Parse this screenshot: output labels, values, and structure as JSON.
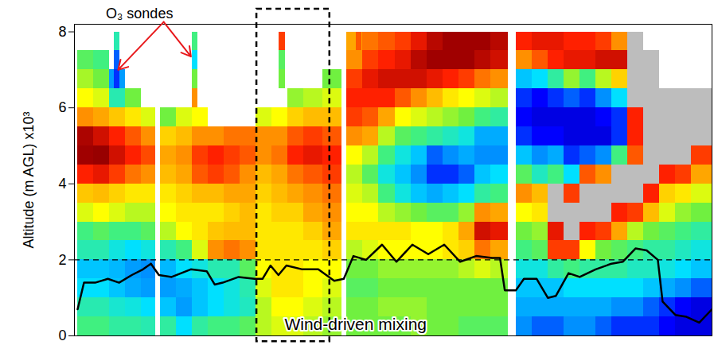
{
  "chart_data": {
    "type": "heatmap",
    "y_label": "Altitude (m AGL) x10³",
    "xlim": [
      0,
      40
    ],
    "ylim": [
      0,
      8.2
    ],
    "yticks": [
      0,
      2,
      4,
      6,
      8
    ],
    "tick_labels": "y",
    "zlim": [
      30,
      100
    ],
    "y_edges": [
      0,
      0.5,
      1,
      1.5,
      2,
      2.5,
      3,
      3.5,
      4,
      4.5,
      5,
      5.5,
      6,
      6.5,
      7,
      7.5,
      8
    ],
    "columns": [
      {
        "x0": 0.2,
        "x1": 1.2,
        "values": [
          58,
          55,
          50,
          48,
          55,
          58,
          68,
          75,
          88,
          96,
          95,
          80,
          70,
          65,
          60,
          null
        ]
      },
      {
        "x0": 1.2,
        "x1": 2.2,
        "values": [
          58,
          55,
          50,
          48,
          55,
          60,
          70,
          76,
          90,
          97,
          92,
          78,
          68,
          62,
          58,
          null
        ]
      },
      {
        "x0": 2.2,
        "x1": 3.2,
        "values": [
          56,
          53,
          48,
          47,
          52,
          58,
          68,
          74,
          86,
          92,
          88,
          75,
          55,
          45,
          null,
          null
        ]
      },
      {
        "x0": 3.2,
        "x1": 4.2,
        "values": [
          56,
          52,
          46,
          45,
          50,
          58,
          66,
          72,
          82,
          88,
          84,
          72,
          62,
          null,
          null,
          null
        ]
      },
      {
        "x0": 4.2,
        "x1": 5.07,
        "values": [
          55,
          50,
          45,
          44,
          52,
          60,
          66,
          72,
          80,
          85,
          80,
          68,
          null,
          null,
          null,
          null
        ]
      },
      {
        "x0": 5.37,
        "x1": 6.4,
        "values": [
          56,
          48,
          45,
          47,
          55,
          66,
          70,
          72,
          76,
          78,
          74,
          62,
          null,
          null,
          null,
          null
        ]
      },
      {
        "x0": 6.4,
        "x1": 7.4,
        "values": [
          50,
          45,
          46,
          50,
          58,
          70,
          72,
          74,
          78,
          80,
          76,
          68,
          null,
          null,
          null,
          null
        ]
      },
      {
        "x0": 7.4,
        "x1": 8.4,
        "values": [
          56,
          48,
          48,
          52,
          68,
          72,
          72,
          76,
          84,
          86,
          80,
          70,
          null,
          null,
          null,
          null
        ]
      },
      {
        "x0": 8.4,
        "x1": 9.4,
        "values": [
          58,
          50,
          50,
          55,
          80,
          75,
          72,
          76,
          86,
          88,
          80,
          null,
          null,
          null,
          null,
          null
        ]
      },
      {
        "x0": 9.4,
        "x1": 10.4,
        "values": [
          58,
          52,
          52,
          55,
          82,
          76,
          74,
          78,
          84,
          86,
          82,
          null,
          null,
          null,
          null,
          null
        ]
      },
      {
        "x0": 10.4,
        "x1": 11.4,
        "values": [
          60,
          54,
          55,
          60,
          80,
          76,
          76,
          78,
          80,
          84,
          82,
          null,
          null,
          null,
          null,
          null
        ]
      },
      {
        "x0": 11.4,
        "x1": 12.4,
        "values": [
          66,
          66,
          68,
          70,
          72,
          72,
          72,
          74,
          76,
          80,
          80,
          68,
          null,
          null,
          null,
          null
        ]
      },
      {
        "x0": 12.4,
        "x1": 13.4,
        "values": [
          68,
          70,
          72,
          72,
          72,
          72,
          74,
          76,
          78,
          82,
          80,
          70,
          null,
          null,
          null,
          null
        ]
      },
      {
        "x0": 13.4,
        "x1": 14.4,
        "values": [
          68,
          70,
          72,
          72,
          72,
          72,
          74,
          78,
          82,
          88,
          84,
          74,
          64,
          null,
          null,
          null
        ]
      },
      {
        "x0": 14.4,
        "x1": 15.6,
        "values": [
          66,
          68,
          70,
          70,
          72,
          74,
          78,
          80,
          84,
          90,
          86,
          76,
          66,
          null,
          null,
          null
        ]
      },
      {
        "x0": 15.6,
        "x1": 16.77,
        "values": [
          64,
          66,
          68,
          70,
          74,
          78,
          80,
          82,
          86,
          88,
          84,
          76,
          68,
          62,
          null,
          null
        ]
      },
      {
        "x0": 17.07,
        "x1": 18.1,
        "values": [
          62,
          62,
          60,
          62,
          66,
          72,
          70,
          68,
          66,
          70,
          80,
          86,
          88,
          86,
          80,
          78
        ]
      },
      {
        "x0": 18.1,
        "x1": 19.1,
        "values": [
          62,
          62,
          60,
          62,
          68,
          72,
          70,
          66,
          60,
          66,
          78,
          84,
          88,
          90,
          86,
          82
        ]
      },
      {
        "x0": 19.1,
        "x1": 20.1,
        "values": [
          62,
          64,
          62,
          64,
          70,
          72,
          66,
          58,
          52,
          58,
          66,
          78,
          88,
          92,
          88,
          84
        ]
      },
      {
        "x0": 20.1,
        "x1": 21.1,
        "values": [
          62,
          64,
          62,
          64,
          70,
          72,
          64,
          52,
          48,
          52,
          60,
          70,
          84,
          92,
          90,
          86
        ]
      },
      {
        "x0": 21.1,
        "x1": 22.1,
        "values": [
          64,
          64,
          62,
          64,
          70,
          70,
          62,
          48,
          44,
          48,
          58,
          68,
          80,
          92,
          94,
          90
        ]
      },
      {
        "x0": 22.1,
        "x1": 23.1,
        "values": [
          62,
          62,
          62,
          64,
          70,
          70,
          60,
          46,
          40,
          42,
          56,
          66,
          76,
          90,
          96,
          94
        ]
      },
      {
        "x0": 23.1,
        "x1": 24.1,
        "values": [
          62,
          62,
          62,
          64,
          72,
          72,
          60,
          48,
          40,
          44,
          54,
          64,
          72,
          88,
          96,
          96
        ]
      },
      {
        "x0": 24.1,
        "x1": 25.1,
        "values": [
          60,
          62,
          62,
          66,
          74,
          78,
          64,
          50,
          42,
          46,
          52,
          62,
          70,
          86,
          96,
          96
        ]
      },
      {
        "x0": 25.1,
        "x1": 26.1,
        "values": [
          60,
          62,
          62,
          68,
          82,
          92,
          80,
          56,
          48,
          44,
          46,
          58,
          68,
          82,
          94,
          96
        ]
      },
      {
        "x0": 26.1,
        "x1": 27.2,
        "values": [
          60,
          62,
          62,
          66,
          78,
          90,
          78,
          58,
          50,
          44,
          46,
          56,
          66,
          80,
          92,
          94
        ]
      },
      {
        "x0": 27.7,
        "x1": 28.7,
        "values": [
          44,
          46,
          48,
          52,
          58,
          62,
          70,
          80,
          60,
          48,
          40,
          38,
          40,
          48,
          80,
          88
        ]
      },
      {
        "x0": 28.7,
        "x1": 29.7,
        "values": [
          42,
          46,
          48,
          52,
          60,
          64,
          72,
          76,
          54,
          44,
          38,
          36,
          38,
          50,
          84,
          90
        ]
      },
      {
        "x0": 29.7,
        "x1": 30.7,
        "values": [
          42,
          46,
          48,
          56,
          86,
          90,
          null,
          null,
          58,
          46,
          38,
          36,
          40,
          56,
          88,
          90
        ],
        "masked": [
          6,
          7
        ]
      },
      {
        "x0": 30.7,
        "x1": 31.7,
        "values": [
          44,
          46,
          50,
          58,
          86,
          null,
          null,
          86,
          50,
          40,
          36,
          36,
          42,
          64,
          90,
          88
        ],
        "masked": [
          5,
          6
        ]
      },
      {
        "x0": 31.7,
        "x1": 32.7,
        "values": [
          44,
          46,
          50,
          56,
          70,
          88,
          null,
          null,
          84,
          42,
          36,
          36,
          40,
          58,
          90,
          88
        ],
        "masked": [
          6,
          7
        ]
      },
      {
        "x0": 32.7,
        "x1": 33.7,
        "values": [
          42,
          46,
          50,
          56,
          62,
          86,
          null,
          null,
          80,
          44,
          36,
          38,
          44,
          66,
          92,
          86
        ],
        "masked": [
          6,
          7
        ]
      },
      {
        "x0": 33.7,
        "x1": 34.7,
        "values": [
          40,
          44,
          50,
          56,
          60,
          78,
          88,
          null,
          null,
          58,
          40,
          40,
          50,
          74,
          92,
          80
        ],
        "masked": [
          7,
          8
        ]
      },
      {
        "x0": 34.7,
        "x1": 35.7,
        "values": [
          40,
          44,
          50,
          54,
          58,
          66,
          86,
          null,
          null,
          84,
          88,
          88,
          null,
          null,
          null,
          null
        ],
        "masked": [
          7,
          8,
          12,
          13,
          14,
          15
        ]
      },
      {
        "x0": 35.7,
        "x1": 36.7,
        "values": [
          40,
          42,
          48,
          54,
          56,
          62,
          76,
          88,
          null,
          null,
          null,
          null,
          null,
          null,
          null,
          null
        ],
        "masked": [
          8,
          9,
          10,
          11,
          12,
          13,
          14
        ]
      },
      {
        "x0": 36.7,
        "x1": 37.7,
        "values": [
          38,
          40,
          46,
          52,
          56,
          60,
          68,
          74,
          88,
          null,
          null,
          null,
          null,
          null,
          null,
          null
        ],
        "masked": [
          9,
          10,
          11,
          12
        ]
      },
      {
        "x0": 37.7,
        "x1": 38.7,
        "values": [
          36,
          38,
          44,
          50,
          54,
          58,
          64,
          72,
          86,
          null,
          null,
          null,
          null,
          null,
          null,
          null
        ],
        "masked": [
          9,
          10,
          11,
          12
        ]
      },
      {
        "x0": 38.7,
        "x1": 40,
        "values": [
          36,
          36,
          42,
          48,
          52,
          56,
          62,
          68,
          78,
          86,
          null,
          null,
          null,
          null,
          null,
          null
        ],
        "masked": [
          10,
          11,
          12
        ]
      }
    ],
    "sondes": [
      {
        "x": 2.69,
        "values": [
          null,
          null,
          null,
          null,
          null,
          null,
          null,
          null,
          null,
          null,
          null,
          null,
          null,
          40,
          42,
          55
        ]
      },
      {
        "x": 7.56,
        "values": [
          null,
          null,
          null,
          null,
          null,
          null,
          null,
          null,
          null,
          null,
          null,
          null,
          80,
          62,
          50,
          58
        ]
      },
      {
        "x": 13.03,
        "values": [
          null,
          null,
          null,
          null,
          null,
          null,
          null,
          null,
          null,
          null,
          null,
          null,
          null,
          62,
          60,
          86
        ]
      },
      {
        "x": 17.86,
        "values": [
          null,
          null,
          null,
          null,
          null,
          null,
          null,
          null,
          null,
          null,
          null,
          null,
          null,
          null,
          null,
          84
        ]
      }
    ],
    "line": {
      "color": "#000000",
      "x": [
        0.2,
        0.6,
        1.3,
        2.1,
        2.8,
        3.6,
        4.3,
        4.8,
        5.3,
        6.1,
        7.3,
        8.3,
        8.8,
        9.3,
        10.3,
        11.3,
        11.8,
        12.3,
        12.8,
        13.3,
        14.3,
        15.3,
        15.8,
        16.3,
        16.9,
        17.5,
        18.3,
        19.3,
        20.2,
        21.2,
        22.2,
        23.2,
        24.2,
        25.2,
        26.2,
        26.7,
        27.0,
        27.7,
        28.2,
        29.0,
        29.7,
        30.2,
        31.0,
        31.7,
        32.7,
        33.7,
        34.4,
        35.2,
        35.9,
        36.6,
        36.9,
        37.7,
        38.4,
        39.2,
        40
      ],
      "values": [
        0.7,
        1.4,
        1.4,
        1.5,
        1.4,
        1.6,
        1.75,
        1.9,
        1.6,
        1.55,
        1.75,
        1.7,
        1.35,
        1.4,
        1.55,
        1.5,
        1.5,
        1.85,
        1.6,
        1.85,
        1.75,
        1.75,
        1.6,
        1.45,
        1.5,
        2.1,
        2.0,
        2.4,
        1.95,
        2.4,
        2.15,
        2.4,
        1.95,
        2.1,
        2.05,
        2.05,
        1.2,
        1.2,
        1.5,
        1.5,
        1.0,
        1.05,
        1.65,
        1.55,
        1.75,
        1.9,
        1.95,
        2.3,
        2.25,
        2.0,
        0.9,
        0.55,
        0.5,
        0.35,
        0.7
      ]
    },
    "reference_lines": [
      {
        "y": 2,
        "line_style": "dashed"
      }
    ],
    "annotations": [
      {
        "text": "O₃ sondes",
        "color": "#e8191c"
      },
      {
        "text": "Wind-driven mixing",
        "x0": 11.44,
        "x1": 16.02,
        "line_style": "dashed"
      }
    ]
  }
}
